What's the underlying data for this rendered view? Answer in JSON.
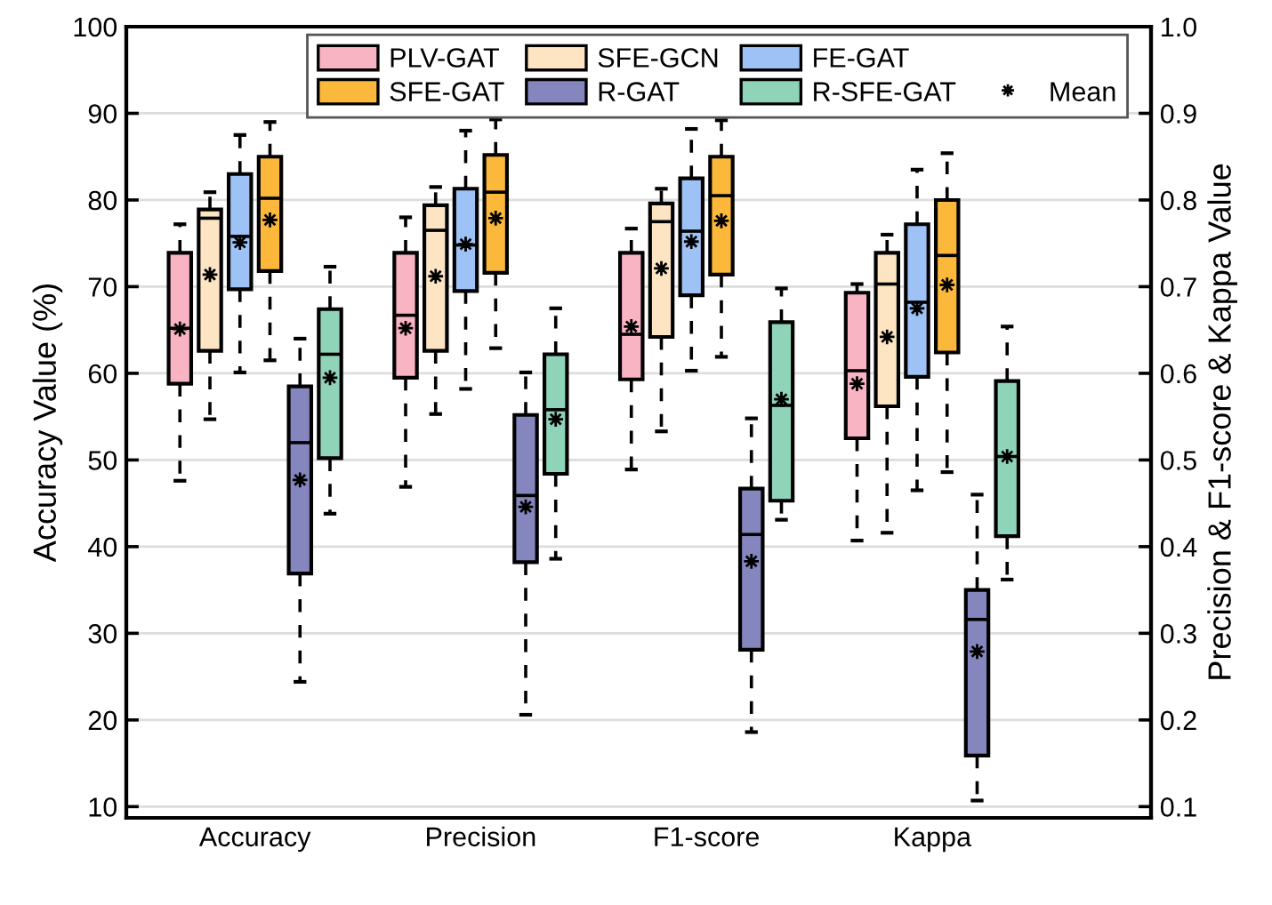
{
  "chart_data": {
    "type": "box",
    "categories": [
      "Accuracy",
      "Precision",
      "F1-score",
      "Kappa"
    ],
    "ylabel": "Accuracy Value (%)",
    "y2label": "Precision & F1-score & Kappa Value",
    "ylim": [
      8.7,
      100
    ],
    "yticks": [
      10,
      20,
      30,
      40,
      50,
      60,
      70,
      80,
      90,
      100
    ],
    "y2lim": [
      0.087,
      1.0
    ],
    "y2ticks": [
      0.1,
      0.2,
      0.3,
      0.4,
      0.5,
      0.6,
      0.7,
      0.8,
      0.9,
      {
        "value": 1.0,
        "label": "1.0"
      }
    ],
    "grid": "y",
    "legend": "top right",
    "line_style": "dashed",
    "annotations": [
      "Mean"
    ],
    "series": [
      {
        "name": "PLV-GAT",
        "color": "#f9b4c4",
        "boxes": [
          {
            "low": 47.6,
            "q1": 58.8,
            "median": 65.2,
            "q3": 73.9,
            "high": 77.2,
            "mean": 65.1
          },
          {
            "low": 46.9,
            "q1": 59.5,
            "median": 66.7,
            "q3": 73.9,
            "high": 78.0,
            "mean": 65.2
          },
          {
            "low": 48.9,
            "q1": 59.3,
            "median": 64.5,
            "q3": 73.9,
            "high": 76.7,
            "mean": 65.4
          },
          {
            "low": 40.7,
            "q1": 52.5,
            "median": 60.3,
            "q3": 69.3,
            "high": 70.3,
            "mean": 58.8
          }
        ]
      },
      {
        "name": "SFE-GCN",
        "color": "#fde5c4",
        "boxes": [
          {
            "low": 54.7,
            "q1": 62.6,
            "median": 77.9,
            "q3": 78.9,
            "high": 80.9,
            "mean": 71.4
          },
          {
            "low": 55.3,
            "q1": 62.6,
            "median": 76.5,
            "q3": 79.4,
            "high": 81.5,
            "mean": 71.2
          },
          {
            "low": 53.3,
            "q1": 64.2,
            "median": 77.5,
            "q3": 79.6,
            "high": 81.3,
            "mean": 72.1
          },
          {
            "low": 41.6,
            "q1": 56.2,
            "median": 70.3,
            "q3": 73.9,
            "high": 76.0,
            "mean": 64.2
          }
        ]
      },
      {
        "name": "FE-GAT",
        "color": "#9ec2f5",
        "boxes": [
          {
            "low": 60.1,
            "q1": 69.7,
            "median": 75.8,
            "q3": 83.0,
            "high": 87.5,
            "mean": 75.1
          },
          {
            "low": 58.2,
            "q1": 69.5,
            "median": 74.8,
            "q3": 81.3,
            "high": 88.0,
            "mean": 74.9
          },
          {
            "low": 60.3,
            "q1": 69.0,
            "median": 76.4,
            "q3": 82.5,
            "high": 88.2,
            "mean": 75.2
          },
          {
            "low": 46.5,
            "q1": 59.6,
            "median": 68.2,
            "q3": 77.2,
            "high": 83.5,
            "mean": 67.5
          }
        ]
      },
      {
        "name": "SFE-GAT",
        "color": "#fbb83a",
        "boxes": [
          {
            "low": 61.5,
            "q1": 71.8,
            "median": 80.2,
            "q3": 85.0,
            "high": 89.0,
            "mean": 77.7
          },
          {
            "low": 62.9,
            "q1": 71.6,
            "median": 80.9,
            "q3": 85.2,
            "high": 89.3,
            "mean": 77.9
          },
          {
            "low": 61.9,
            "q1": 71.4,
            "median": 80.5,
            "q3": 85.0,
            "high": 89.2,
            "mean": 77.6
          },
          {
            "low": 48.6,
            "q1": 62.4,
            "median": 73.6,
            "q3": 80.0,
            "high": 85.4,
            "mean": 70.2
          }
        ]
      },
      {
        "name": "R-GAT",
        "color": "#8686bf",
        "boxes": [
          {
            "low": 24.4,
            "q1": 36.9,
            "median": 52.0,
            "q3": 58.5,
            "high": 64.0,
            "mean": 47.7
          },
          {
            "low": 20.6,
            "q1": 38.2,
            "median": 45.9,
            "q3": 55.2,
            "high": 60.1,
            "mean": 44.6
          },
          {
            "low": 18.6,
            "q1": 28.1,
            "median": 41.4,
            "q3": 46.7,
            "high": 54.8,
            "mean": 38.3
          },
          {
            "low": 10.7,
            "q1": 15.9,
            "median": 31.6,
            "q3": 35.0,
            "high": 46.0,
            "mean": 27.9
          }
        ]
      },
      {
        "name": "R-SFE-GAT",
        "color": "#8fd3b9",
        "boxes": [
          {
            "low": 43.8,
            "q1": 50.2,
            "median": 62.2,
            "q3": 67.4,
            "high": 72.3,
            "mean": 59.5
          },
          {
            "low": 38.6,
            "q1": 48.4,
            "median": 55.8,
            "q3": 62.2,
            "high": 67.5,
            "mean": 54.7
          },
          {
            "low": 43.1,
            "q1": 45.3,
            "median": 56.3,
            "q3": 65.9,
            "high": 69.8,
            "mean": 57.0
          },
          {
            "low": 36.2,
            "q1": 41.2,
            "median": 50.4,
            "q3": 59.1,
            "high": 65.4,
            "mean": 50.4
          }
        ]
      }
    ]
  }
}
